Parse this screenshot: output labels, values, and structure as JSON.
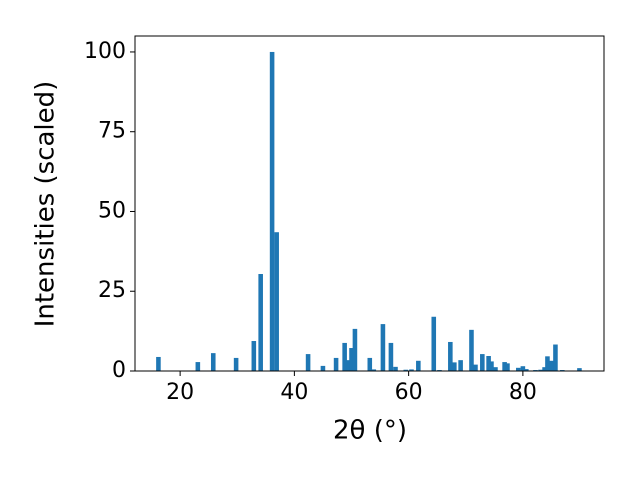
{
  "chart_data": {
    "type": "bar",
    "xlabel": "2θ (°)",
    "ylabel": "Intensities (scaled)",
    "color": "#1f77b4",
    "x": [
      16.2,
      23.1,
      25.8,
      29.8,
      32.9,
      34.1,
      36.1,
      36.9,
      42.4,
      45.0,
      47.3,
      48.8,
      49.5,
      50.0,
      50.6,
      53.2,
      53.9,
      55.5,
      56.9,
      57.7,
      59.5,
      60.5,
      61.7,
      64.4,
      65.4,
      67.3,
      68.0,
      69.1,
      71.0,
      71.7,
      72.9,
      74.0,
      74.5,
      75.2,
      76.8,
      77.3,
      79.2,
      80.0,
      80.6,
      82.2,
      83.1,
      83.8,
      84.3,
      85.0,
      85.7,
      86.9,
      89.9
    ],
    "values": [
      4.4,
      2.8,
      5.6,
      4.1,
      9.4,
      30.4,
      100,
      43.5,
      5.3,
      1.6,
      4.1,
      8.8,
      3.4,
      7.2,
      13.2,
      4.1,
      0.5,
      14.7,
      8.8,
      1.3,
      0.4,
      0.5,
      3.2,
      17,
      0.3,
      9.1,
      2.7,
      3.4,
      12.9,
      2.0,
      5.3,
      4.7,
      3.0,
      1.2,
      2.8,
      2.4,
      1.0,
      1.5,
      0.6,
      0.3,
      0.4,
      1.2,
      4.6,
      3.2,
      8.3,
      0.3,
      0.9
    ],
    "xlim": [
      12.1,
      94.2
    ],
    "ylim": [
      0,
      105
    ],
    "xticks": [
      20,
      40,
      60,
      80
    ],
    "yticks": [
      0,
      25,
      50,
      75,
      100
    ]
  }
}
